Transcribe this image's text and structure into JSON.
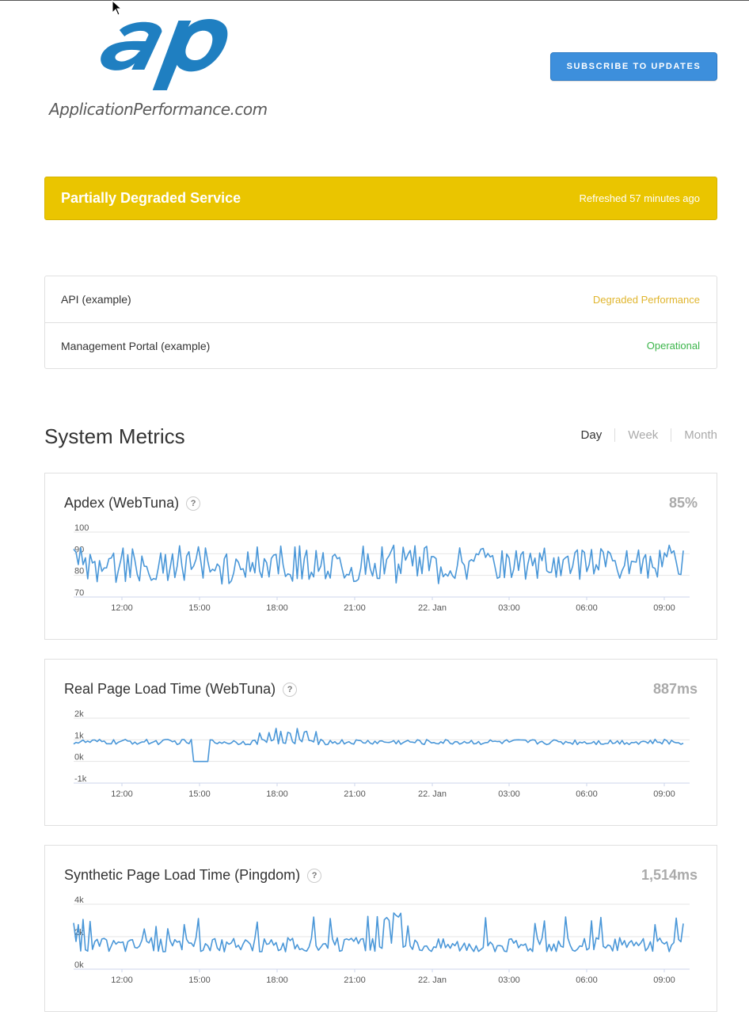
{
  "header": {
    "logo_text": "ApplicationPerformance.com",
    "logo_mark": "ap",
    "subscribe_label": "SUBSCRIBE TO UPDATES"
  },
  "status_banner": {
    "title": "Partially Degraded Service",
    "refreshed": "Refreshed 57 minutes ago",
    "color": "#eac500"
  },
  "components": [
    {
      "name": "API (example)",
      "status": "Degraded Performance",
      "status_color": "#e0b52d"
    },
    {
      "name": "Management Portal (example)",
      "status": "Operational",
      "status_color": "#3bb54a"
    }
  ],
  "metrics_section": {
    "title": "System Metrics",
    "ranges": [
      "Day",
      "Week",
      "Month"
    ],
    "active_range": "Day"
  },
  "metrics": [
    {
      "name": "Apdex (WebTuna)",
      "value": "85%",
      "help": "?"
    },
    {
      "name": "Real Page Load Time (WebTuna)",
      "value": "887ms",
      "help": "?"
    },
    {
      "name": "Synthetic Page Load Time (Pingdom)",
      "value": "1,514ms",
      "help": "?"
    }
  ],
  "chart_data": [
    {
      "type": "line",
      "x_tick_labels": [
        "12:00",
        "15:00",
        "18:00",
        "21:00",
        "22. Jan",
        "03:00",
        "06:00",
        "09:00"
      ],
      "y_tick_labels": [
        "100",
        "90",
        "80",
        "70"
      ],
      "ylim": [
        70,
        100
      ],
      "series": [
        {
          "color": "#4a97d8",
          "approx_mean": 85,
          "approx_range": [
            72,
            93
          ]
        }
      ]
    },
    {
      "type": "line",
      "x_tick_labels": [
        "12:00",
        "15:00",
        "18:00",
        "21:00",
        "22. Jan",
        "03:00",
        "06:00",
        "09:00"
      ],
      "y_tick_labels": [
        "2k",
        "1k",
        "0k",
        "-1k"
      ],
      "ylim": [
        -1000,
        2000
      ],
      "series": [
        {
          "color": "#4a97d8",
          "approx_mean": 887,
          "approx_range": [
            0,
            1600
          ]
        }
      ]
    },
    {
      "type": "line",
      "x_tick_labels": [
        "12:00",
        "15:00",
        "18:00",
        "21:00",
        "22. Jan",
        "03:00",
        "06:00",
        "09:00"
      ],
      "y_tick_labels": [
        "4k",
        "2k",
        "0k"
      ],
      "ylim": [
        0,
        4000
      ],
      "series": [
        {
          "color": "#4a97d8",
          "approx_mean": 1514,
          "approx_range": [
            700,
            3400
          ]
        }
      ]
    }
  ]
}
